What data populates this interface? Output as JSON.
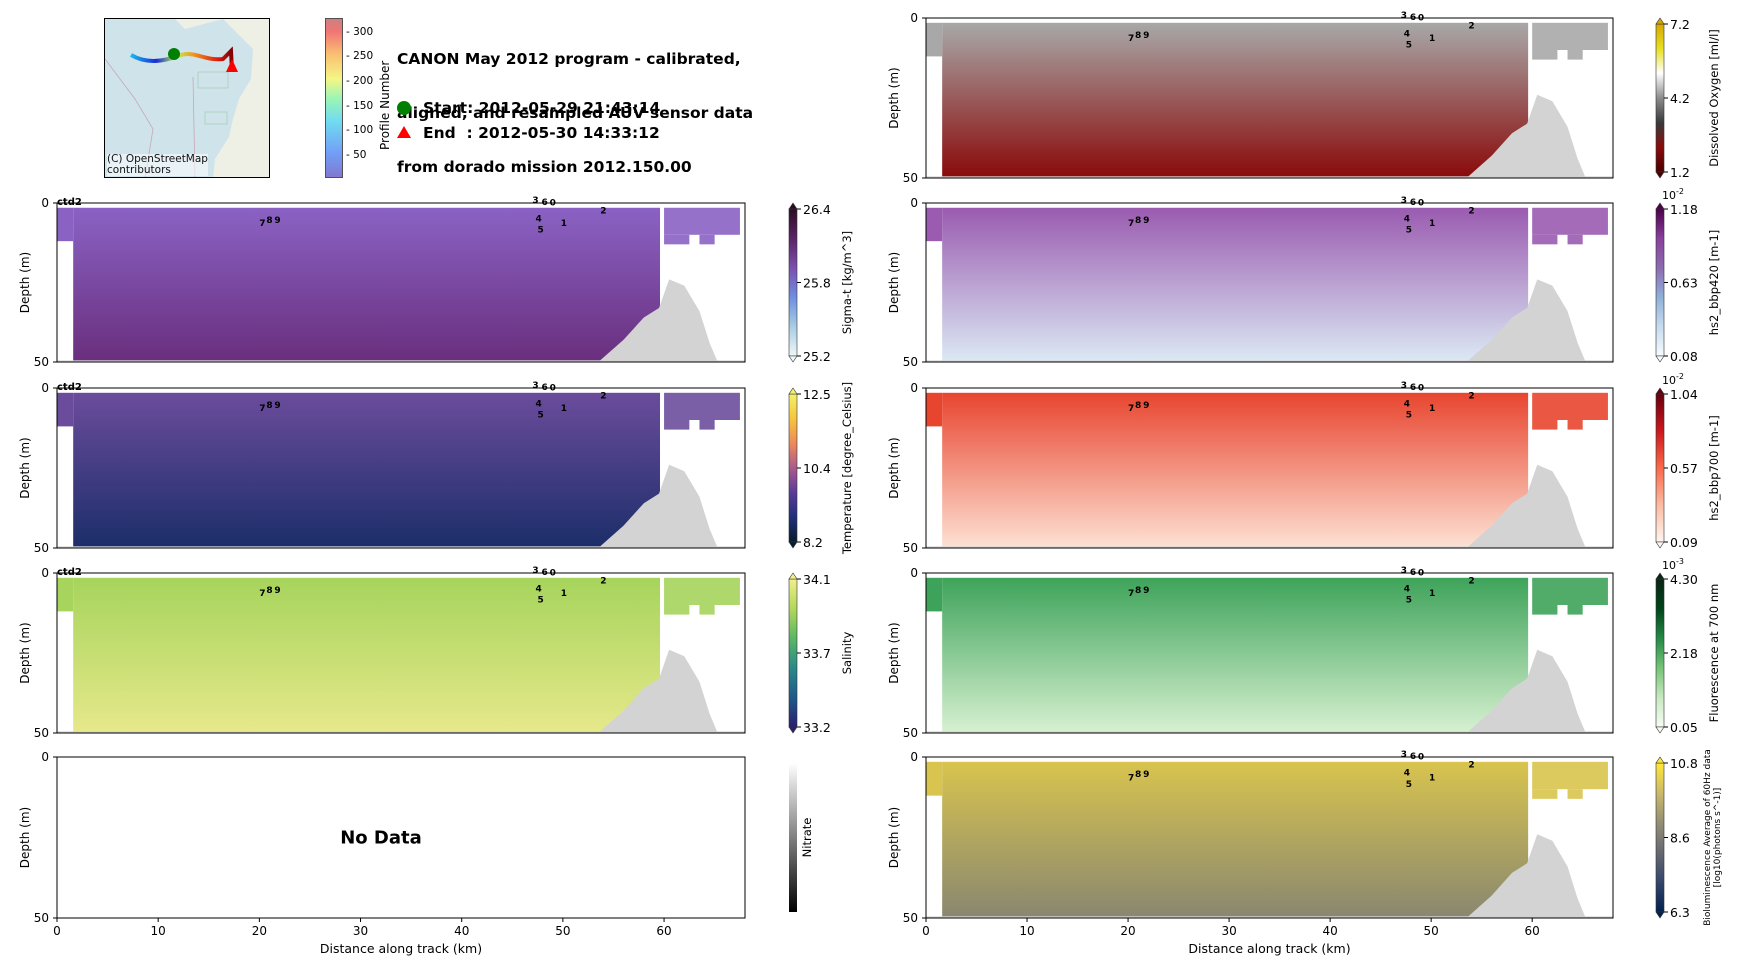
{
  "header": {
    "title_lines": [
      "CANON May 2012 program - calibrated,",
      "aligned, and resampled AUV sensor data",
      "from dorado mission 2012.150.00"
    ],
    "start_label": "Start: 2012-05-29 21:43:14",
    "end_label": "End  : 2012-05-30 14:33:12",
    "start_marker_color": "#008000",
    "end_marker_color": "#ff0000"
  },
  "map": {
    "credit_line1": "(C) OpenStreetMap",
    "credit_line2": "contributors",
    "colorbar_label": "Profile Number",
    "colorbar_ticks": [
      "50",
      "100",
      "150",
      "200",
      "250",
      "300"
    ]
  },
  "chart_data": [
    {
      "type": "heatmap",
      "id": "sigma_t",
      "column": "left",
      "row": 1,
      "xlabel": "",
      "ylabel": "Depth (m)",
      "xlim": [
        0,
        68
      ],
      "ylim": [
        50,
        0
      ],
      "yticks": [
        "0",
        "50"
      ],
      "xticks": [],
      "tag": "ctd2",
      "colorbar": {
        "label": "Sigma-t [kg/m^3]",
        "ticks": [
          "26.4",
          "25.8",
          "25.2"
        ],
        "min": 25.2,
        "max": 26.4,
        "colors": [
          "#f0f7f8",
          "#a7cde4",
          "#6f8fe0",
          "#7a4fb0",
          "#5a2466",
          "#2b0c25"
        ],
        "multiplier": ""
      },
      "fill": "#6a2f7e",
      "upper_fill": "#8a62c4",
      "no_data": false
    },
    {
      "type": "heatmap",
      "id": "temperature",
      "column": "left",
      "row": 2,
      "xlabel": "",
      "ylabel": "Depth (m)",
      "xlim": [
        0,
        68
      ],
      "ylim": [
        50,
        0
      ],
      "yticks": [
        "0",
        "50"
      ],
      "xticks": [],
      "tag": "ctd2",
      "colorbar": {
        "label": "Temperature [degree_Celsius]",
        "ticks": [
          "12.5",
          "10.4",
          "8.2"
        ],
        "min": 8.2,
        "max": 12.5,
        "colors": [
          "#061d2c",
          "#1f2f7a",
          "#5a3b9a",
          "#a95b8b",
          "#ee8a59",
          "#f6c53d",
          "#f2f16a"
        ],
        "multiplier": ""
      },
      "fill": "#1c2e6a",
      "upper_fill": "#6b4c9c",
      "no_data": false
    },
    {
      "type": "heatmap",
      "id": "salinity",
      "column": "left",
      "row": 3,
      "xlabel": "",
      "ylabel": "Depth (m)",
      "xlim": [
        0,
        68
      ],
      "ylim": [
        50,
        0
      ],
      "yticks": [
        "0",
        "50"
      ],
      "xticks": [],
      "tag": "ctd2",
      "colorbar": {
        "label": "Salinity",
        "ticks": [
          "34.1",
          "33.7",
          "33.2"
        ],
        "min": 33.2,
        "max": 34.1,
        "colors": [
          "#2b1e6f",
          "#1f5a8a",
          "#2a8a88",
          "#5bb765",
          "#b0d85a",
          "#f2ee8c"
        ],
        "multiplier": ""
      },
      "fill": "#e6e88a",
      "upper_fill": "#a6d45c",
      "no_data": false
    },
    {
      "type": "heatmap",
      "id": "nitrate",
      "column": "left",
      "row": 4,
      "xlabel": "Distance along track (km)",
      "ylabel": "Depth (m)",
      "xlim": [
        0,
        68
      ],
      "ylim": [
        50,
        0
      ],
      "yticks": [
        "0",
        "50"
      ],
      "xticks": [
        "0",
        "10",
        "20",
        "30",
        "40",
        "50",
        "60"
      ],
      "tag": "",
      "colorbar": {
        "label": "Nitrate",
        "ticks": [],
        "colors": [
          "#000000",
          "#ffffff"
        ],
        "multiplier": ""
      },
      "no_data": true,
      "no_data_text": "No Data"
    },
    {
      "type": "heatmap",
      "id": "dissolved_oxygen",
      "column": "right",
      "row": 0,
      "xlabel": "",
      "ylabel": "Depth (m)",
      "xlim": [
        0,
        68
      ],
      "ylim": [
        50,
        0
      ],
      "yticks": [
        "0",
        "50"
      ],
      "xticks": [],
      "tag": "",
      "colorbar": {
        "label": "Dissolved Oxygen [ml/l]",
        "ticks": [
          "7.2",
          "4.2",
          "1.2"
        ],
        "min": 1.2,
        "max": 7.2,
        "colors": [
          "#4a0000",
          "#8a0b0b",
          "#3a3a3a",
          "#8d8d8d",
          "#ffffff",
          "#e8e020",
          "#d4a800"
        ],
        "multiplier": ""
      },
      "fill": "#8a8a8a",
      "upper_fill": "#a8a8a8",
      "deep_fill": "#8a0b0b",
      "no_data": false
    },
    {
      "type": "heatmap",
      "id": "bbp420",
      "column": "right",
      "row": 1,
      "xlabel": "",
      "ylabel": "Depth (m)",
      "xlim": [
        0,
        68
      ],
      "ylim": [
        50,
        0
      ],
      "yticks": [
        "0",
        "50"
      ],
      "xticks": [],
      "tag": "",
      "colorbar": {
        "label": "hs2_bbp420 [m-1]",
        "ticks": [
          "1.18",
          "0.63",
          "0.08"
        ],
        "min": 0.08,
        "max": 1.18,
        "colors": [
          "#f7fbff",
          "#c6dbef",
          "#8fb0d8",
          "#8c6bb1",
          "#88419d",
          "#4d004b"
        ],
        "multiplier": "10^-2"
      },
      "fill": "#dbe8f4",
      "upper_fill": "#9a5bb0",
      "no_data": false
    },
    {
      "type": "heatmap",
      "id": "bbp700",
      "column": "right",
      "row": 2,
      "xlabel": "",
      "ylabel": "Depth (m)",
      "xlim": [
        0,
        68
      ],
      "ylim": [
        50,
        0
      ],
      "yticks": [
        "0",
        "50"
      ],
      "xticks": [],
      "tag": "",
      "colorbar": {
        "label": "hs2_bbp700 [m-1]",
        "ticks": [
          "1.04",
          "0.57",
          "0.09"
        ],
        "min": 0.09,
        "max": 1.04,
        "colors": [
          "#fff5f0",
          "#fcbba1",
          "#fb6a4a",
          "#cb181d",
          "#67000d"
        ],
        "multiplier": "10^-2"
      },
      "fill": "#fde0d2",
      "upper_fill": "#e8452f",
      "no_data": false
    },
    {
      "type": "heatmap",
      "id": "fluorescence",
      "column": "right",
      "row": 3,
      "xlabel": "",
      "ylabel": "Depth (m)",
      "xlim": [
        0,
        68
      ],
      "ylim": [
        50,
        0
      ],
      "yticks": [
        "0",
        "50"
      ],
      "xticks": [],
      "tag": "",
      "colorbar": {
        "label": "Fluorescence at 700 nm",
        "ticks": [
          "4.30",
          "2.18",
          "0.05"
        ],
        "min": 0.05,
        "max": 4.3,
        "colors": [
          "#f7fcf5",
          "#c7e9c0",
          "#74c476",
          "#238b45",
          "#00441b",
          "#0b2414"
        ],
        "multiplier": "10^-3"
      },
      "fill": "#d6f0d0",
      "upper_fill": "#3ea35a",
      "no_data": false
    },
    {
      "type": "heatmap",
      "id": "bioluminescence",
      "column": "right",
      "row": 4,
      "xlabel": "Distance along track (km)",
      "ylabel": "Depth (m)",
      "xlim": [
        0,
        68
      ],
      "ylim": [
        50,
        0
      ],
      "yticks": [
        "0",
        "50"
      ],
      "xticks": [
        "0",
        "10",
        "20",
        "30",
        "40",
        "50",
        "60"
      ],
      "tag": "",
      "colorbar": {
        "label": "Bioluminescence Average of 60Hz data",
        "label2": "[log10(photons s^-1)]",
        "ticks": [
          "10.8",
          "8.6",
          "6.3"
        ],
        "min": 6.3,
        "max": 10.8,
        "colors": [
          "#00224e",
          "#35456c",
          "#666970",
          "#958f78",
          "#cbba69",
          "#fee838"
        ],
        "multiplier": ""
      },
      "fill": "#8a8770",
      "upper_fill": "#d8c44e",
      "no_data": false
    }
  ],
  "annotations": {
    "profile_labels": [
      {
        "text": "7",
        "km": 20.3,
        "depth": 6
      },
      {
        "text": "8",
        "km": 21.0,
        "depth": 5
      },
      {
        "text": "9",
        "km": 21.8,
        "depth": 5
      },
      {
        "text": "3",
        "km": 47.3,
        "depth": -1.2
      },
      {
        "text": "6",
        "km": 48.2,
        "depth": -0.6
      },
      {
        "text": "0",
        "km": 49.0,
        "depth": -0.4
      },
      {
        "text": "2",
        "km": 54.0,
        "depth": 2
      },
      {
        "text": "4",
        "km": 47.6,
        "depth": 4.5
      },
      {
        "text": "1",
        "km": 50.1,
        "depth": 6
      },
      {
        "text": "5",
        "km": 47.8,
        "depth": 8
      }
    ]
  }
}
